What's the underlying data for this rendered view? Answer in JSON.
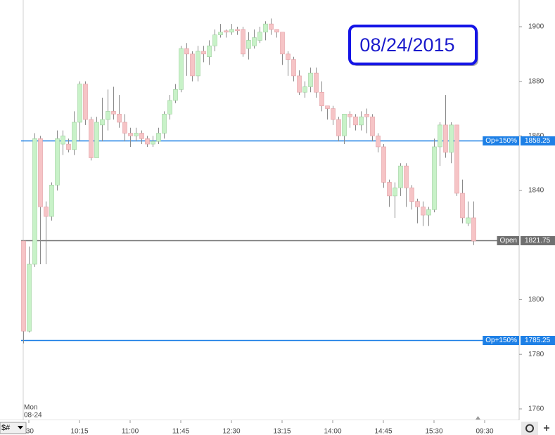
{
  "chart_data": {
    "type": "candlestick",
    "title": "08/24/2015",
    "session_label": {
      "day": "Mon",
      "date": "08-24"
    },
    "open": [
      1821.5,
      1788.5,
      1813,
      1859,
      1834,
      1830.5,
      1842,
      1857,
      1857,
      1855,
      1865,
      1879,
      1866,
      1852,
      1864,
      1866,
      1869,
      1868,
      1865,
      1861,
      1860,
      1861,
      1859,
      1857,
      1858,
      1861,
      1868,
      1873,
      1877,
      1892,
      1890,
      1882,
      1891,
      1889,
      1893,
      1897,
      1898.5,
      1898,
      1899,
      1899,
      1892,
      1893,
      1895,
      1898,
      1901,
      1899,
      1898,
      1890,
      1888,
      1882,
      1876,
      1878,
      1883,
      1876,
      1871,
      1870,
      1866,
      1860,
      1868,
      1867,
      1864,
      1868,
      1867,
      1860,
      1856,
      1843,
      1838,
      1841,
      1849,
      1841,
      1836,
      1834,
      1831,
      1833,
      1856,
      1864,
      1854,
      1864,
      1839,
      1828,
      1830
    ],
    "high": [
      1821.75,
      1819.5,
      1861,
      1860,
      1836,
      1843,
      1862,
      1862,
      1859,
      1869,
      1880,
      1880,
      1867,
      1867,
      1874,
      1877,
      1878,
      1875,
      1868,
      1863,
      1863,
      1862,
      1860,
      1860,
      1863,
      1869,
      1875,
      1879,
      1893,
      1894,
      1891,
      1893,
      1893,
      1895,
      1899,
      1901,
      1899,
      1901,
      1900,
      1900,
      1898,
      1899,
      1900,
      1902,
      1903,
      1899,
      1898,
      1891,
      1889,
      1884,
      1880,
      1885,
      1885,
      1880,
      1871,
      1871,
      1867,
      1868,
      1869,
      1868,
      1869,
      1870,
      1868,
      1861,
      1857,
      1844,
      1843,
      1850,
      1850,
      1842,
      1837,
      1836,
      1834,
      1859,
      1865,
      1875,
      1865,
      1864,
      1844,
      1836,
      1836
    ],
    "low": [
      1784,
      1788,
      1812,
      1813,
      1813,
      1829,
      1840,
      1853,
      1854,
      1853,
      1858,
      1864,
      1851,
      1852,
      1858,
      1862,
      1866,
      1863,
      1858,
      1856,
      1858,
      1857,
      1856,
      1856,
      1857,
      1859,
      1866,
      1872,
      1876,
      1882,
      1880,
      1880,
      1887,
      1886,
      1891,
      1896,
      1896,
      1897,
      1897,
      1889,
      1888,
      1892,
      1894,
      1895,
      1897,
      1896,
      1886,
      1882,
      1880,
      1875,
      1874,
      1876,
      1874,
      1869,
      1866,
      1864,
      1858,
      1857,
      1863,
      1862,
      1862,
      1861,
      1858,
      1854,
      1841,
      1834,
      1830,
      1838,
      1834,
      1833,
      1828,
      1827,
      1827,
      1832,
      1849,
      1852,
      1850,
      1838,
      1828,
      1827,
      1820
    ],
    "close": [
      1788.5,
      1813,
      1859,
      1834,
      1830.5,
      1842,
      1859,
      1860,
      1855,
      1865,
      1879,
      1866,
      1852,
      1865,
      1866,
      1869,
      1868,
      1865,
      1861,
      1860,
      1861,
      1859,
      1857,
      1858,
      1861,
      1868,
      1873,
      1877,
      1892,
      1890,
      1882,
      1891,
      1890,
      1893,
      1897,
      1898,
      1898,
      1899,
      1898.5,
      1890,
      1895,
      1896,
      1898,
      1901,
      1899,
      1898,
      1890,
      1888,
      1882,
      1876,
      1878,
      1883,
      1876,
      1871,
      1870,
      1866,
      1860,
      1868,
      1867,
      1864,
      1867,
      1867,
      1860,
      1856,
      1843,
      1838,
      1841,
      1849,
      1841,
      1836,
      1834,
      1831,
      1833,
      1856,
      1864,
      1854,
      1864,
      1839,
      1830,
      1830,
      1821.5
    ],
    "up_color": "#c8f2c8",
    "down_color": "#f6c4c6",
    "xlim": [
      -4.125,
      88.125
    ],
    "xticks": [
      {
        "value": 1,
        "label": ":30"
      },
      {
        "value": 10,
        "label": "10:15"
      },
      {
        "value": 19,
        "label": "11:00"
      },
      {
        "value": 28,
        "label": "11:45"
      },
      {
        "value": 37,
        "label": "12:30"
      },
      {
        "value": 46,
        "label": "13:15"
      },
      {
        "value": 55,
        "label": "14:00"
      },
      {
        "value": 64,
        "label": "14:45"
      },
      {
        "value": 73,
        "label": "15:30"
      },
      {
        "value": 82,
        "label": "09:30"
      }
    ],
    "ylim": [
      1755.86,
      1909.78
    ],
    "yticks": [
      1760,
      1780,
      1800,
      1840,
      1860,
      1880,
      1900
    ],
    "grid": false,
    "reference_lines": [
      {
        "label": "Op+150%",
        "value": 1858.25,
        "color": "#1e80e6"
      },
      {
        "label": "Open",
        "value": 1821.75,
        "color": "#707070"
      },
      {
        "label": "Op+150%",
        "value": 1785.25,
        "color": "#1e80e6"
      }
    ]
  },
  "toolbar": {
    "selector": "$#"
  }
}
